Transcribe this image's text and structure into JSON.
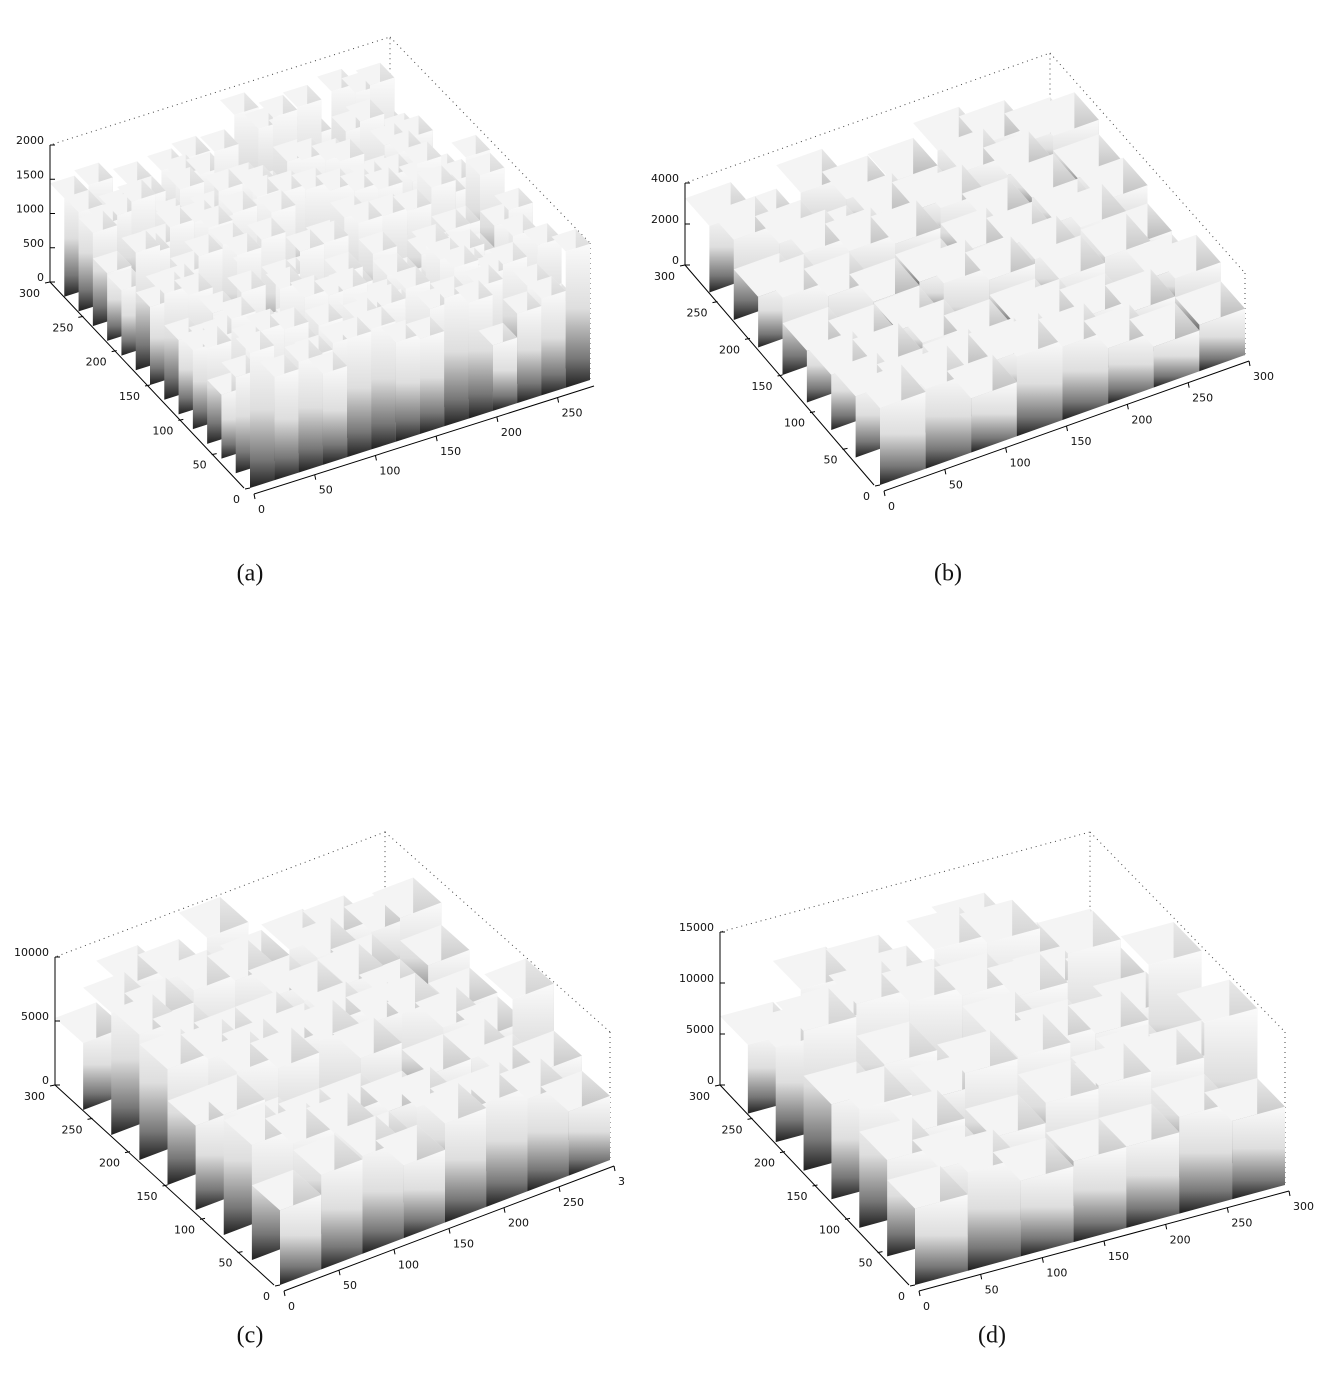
{
  "chart_data": [
    {
      "type": "surface",
      "caption": "(a)",
      "xlim": [
        0,
        280
      ],
      "xticks": [
        0,
        50,
        100,
        150,
        200,
        250
      ],
      "ylim": [
        0,
        300
      ],
      "yticks": [
        0,
        50,
        100,
        150,
        200,
        250,
        300
      ],
      "zlim": [
        0,
        2000
      ],
      "zticks": [
        0,
        500,
        1000,
        1500,
        2000
      ]
    },
    {
      "type": "surface",
      "caption": "(b)",
      "xlim": [
        0,
        300
      ],
      "xticks": [
        0,
        50,
        100,
        150,
        200,
        250,
        300
      ],
      "ylim": [
        0,
        300
      ],
      "yticks": [
        0,
        50,
        100,
        150,
        200,
        250,
        300
      ],
      "zlim": [
        0,
        4000
      ],
      "zticks": [
        0,
        2000,
        4000
      ]
    },
    {
      "type": "surface",
      "caption": "(c)",
      "xlim": [
        0,
        300
      ],
      "xticks": [
        0,
        50,
        100,
        150,
        200,
        250,
        {
          "value": 300,
          "label": "3"
        }
      ],
      "ylim": [
        0,
        300
      ],
      "yticks": [
        0,
        50,
        100,
        150,
        200,
        250,
        300
      ],
      "zlim": [
        0,
        10000
      ],
      "zticks": [
        0,
        5000,
        10000
      ]
    },
    {
      "type": "surface",
      "caption": "(d)",
      "xlim": [
        0,
        300
      ],
      "xticks": [
        0,
        50,
        100,
        150,
        200,
        250,
        300
      ],
      "ylim": [
        0,
        300
      ],
      "yticks": [
        0,
        50,
        100,
        150,
        200,
        250,
        300
      ],
      "zlim": [
        0,
        15000
      ],
      "zticks": [
        0,
        5000,
        10000,
        15000
      ]
    }
  ]
}
